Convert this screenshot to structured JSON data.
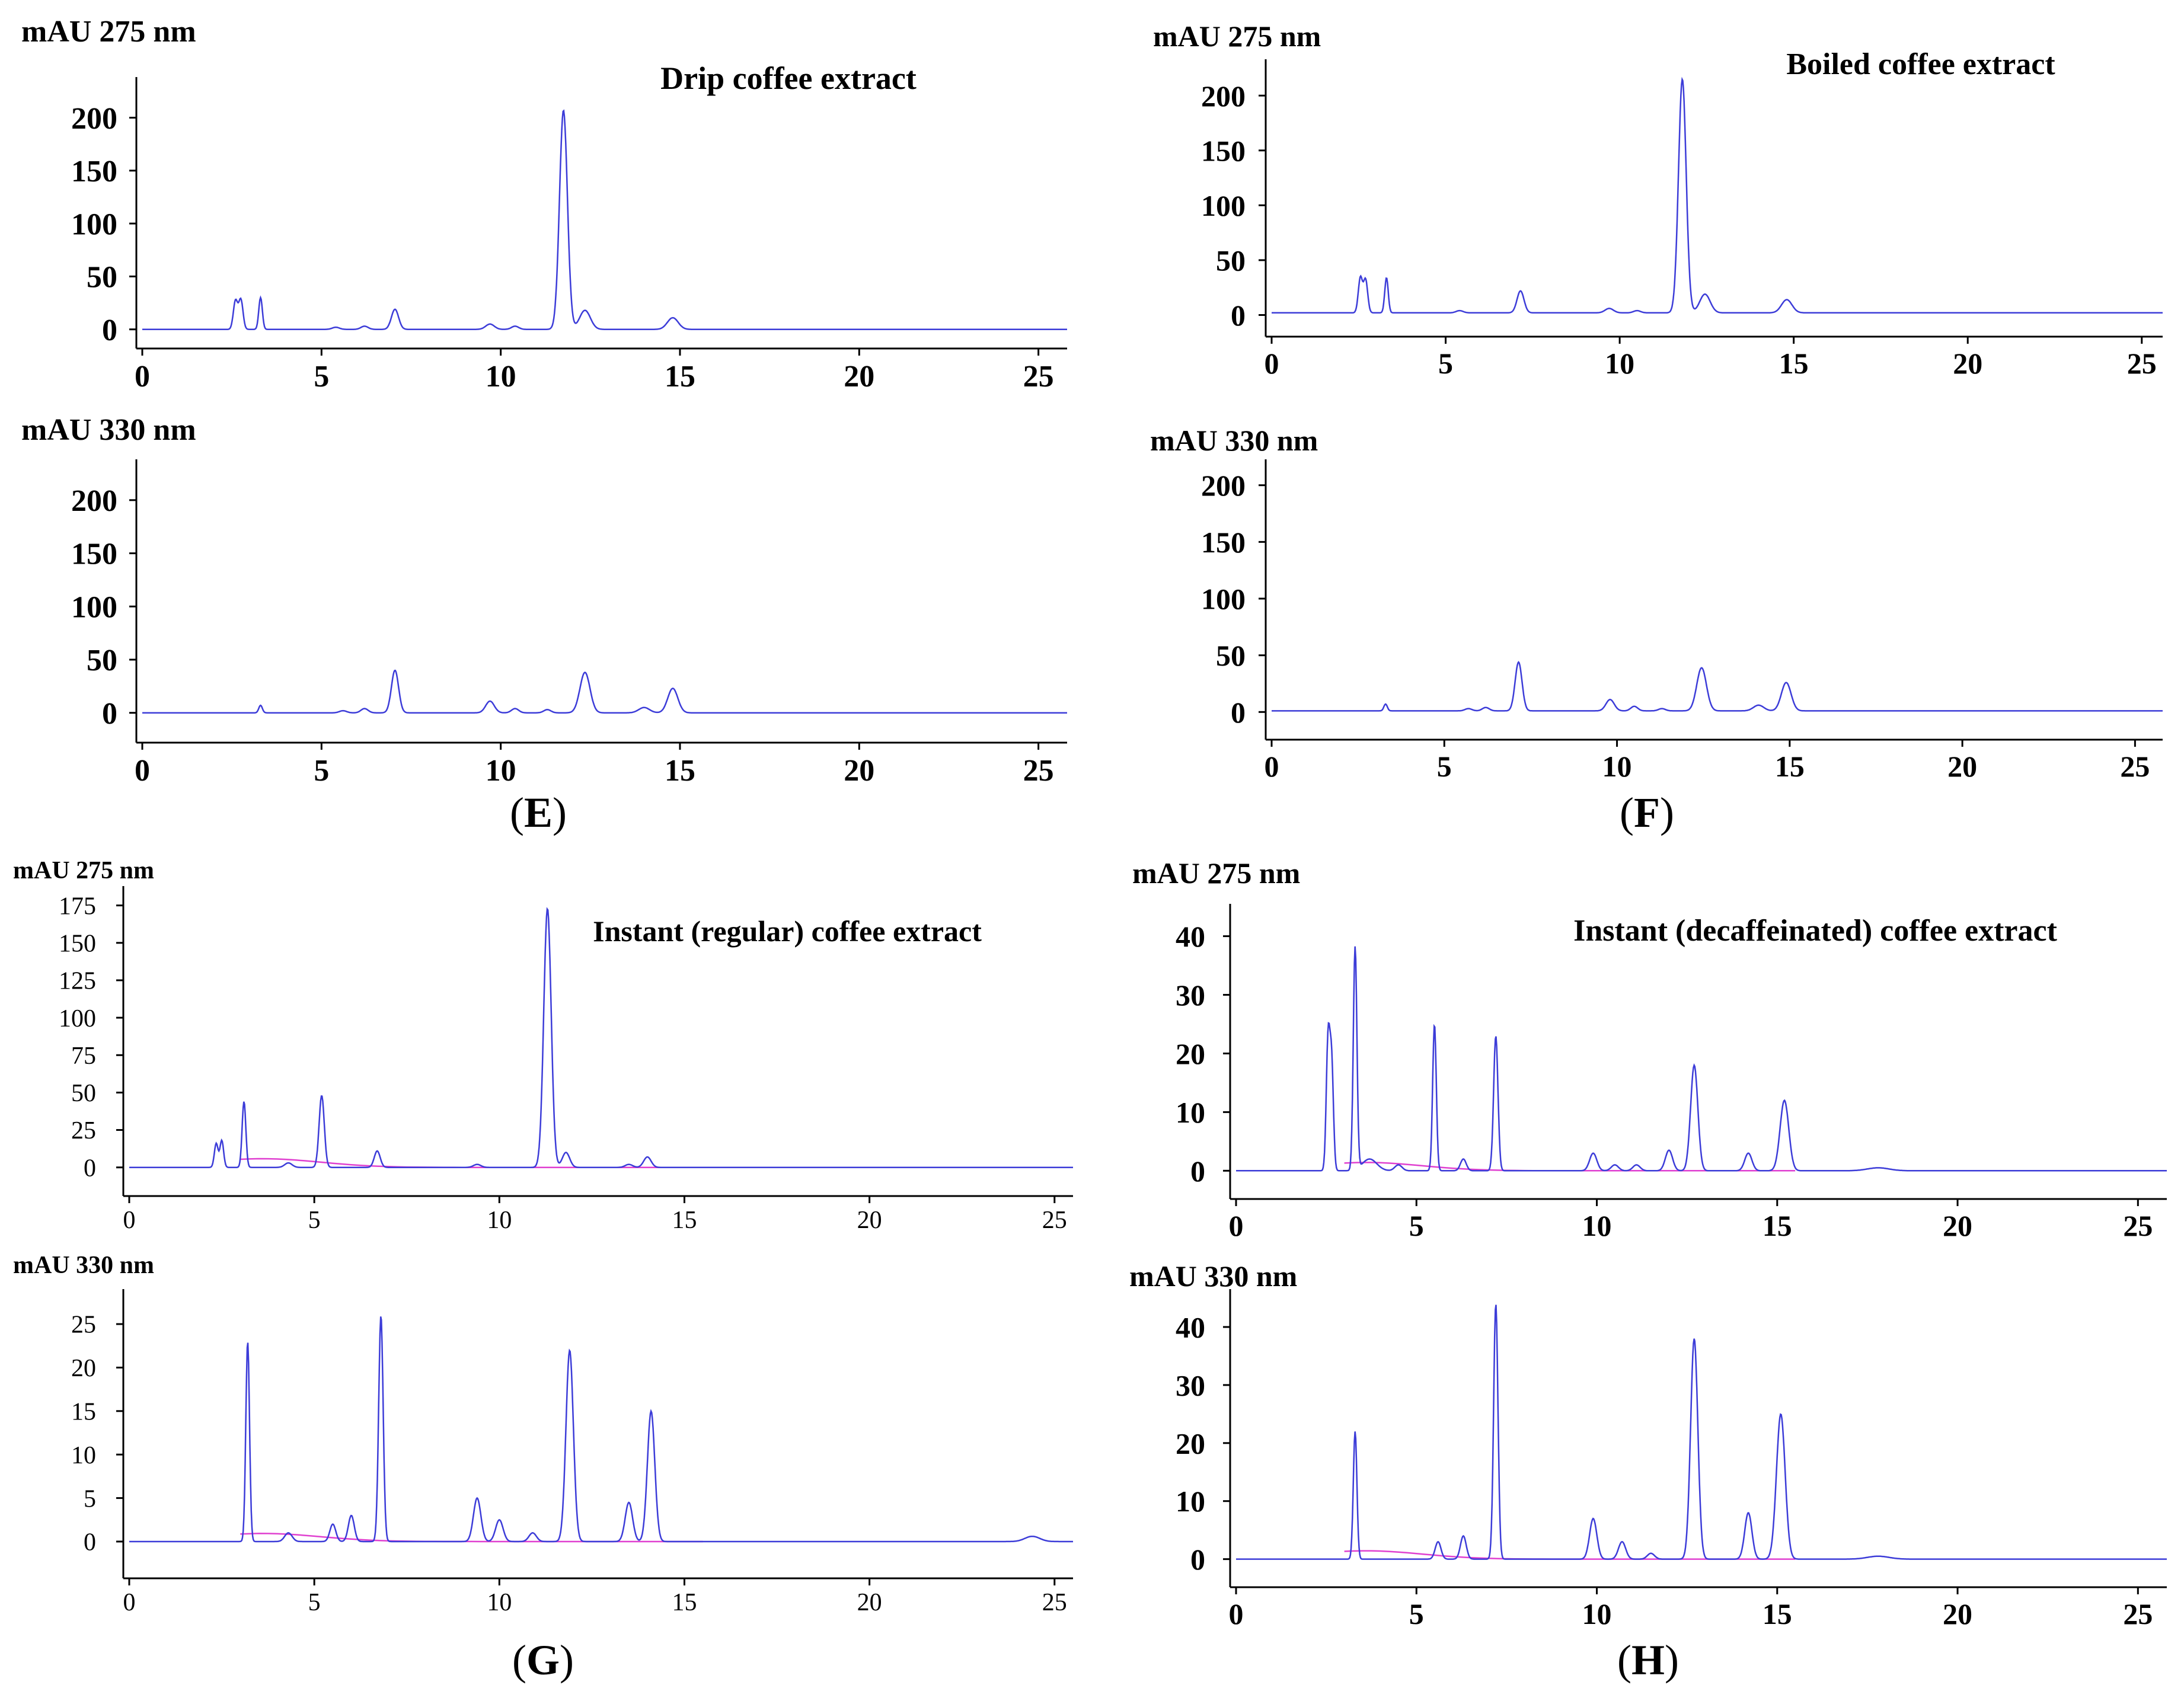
{
  "figure": {
    "panel_labels": [
      {
        "key": "E",
        "open": "(",
        "letter": "E",
        "close": ")"
      },
      {
        "key": "F",
        "open": "(",
        "letter": "F",
        "close": ")"
      },
      {
        "key": "G",
        "open": "(",
        "letter": "G",
        "close": ")"
      },
      {
        "key": "H",
        "open": "(",
        "letter": "H",
        "close": ")"
      }
    ]
  },
  "colors": {
    "trace": "#3c3cd8",
    "baseline": "#e040d0",
    "axis": "#000000",
    "text": "#000000"
  },
  "chart_data": [
    {
      "id": "E-275",
      "panel": "E",
      "type": "line",
      "ylabel": "mAU 275 nm",
      "title": "Drip coffee extract",
      "xlim": [
        0,
        25.8
      ],
      "ylim": [
        -8,
        230
      ],
      "xticks": [
        0,
        5,
        10,
        15,
        20,
        25
      ],
      "yticks": [
        0,
        50,
        100,
        150,
        200
      ],
      "ytick_labels": [
        "0",
        "50",
        "100",
        "150",
        "200"
      ],
      "baseline": 0,
      "has_integration_baseline": false,
      "peaks": [
        [
          2.6,
          27,
          0.06
        ],
        [
          2.75,
          28,
          0.06
        ],
        [
          3.3,
          30,
          0.05
        ],
        [
          5.4,
          2,
          0.1
        ],
        [
          6.2,
          3,
          0.1
        ],
        [
          7.05,
          19,
          0.1
        ],
        [
          9.7,
          5,
          0.12
        ],
        [
          10.4,
          3,
          0.1
        ],
        [
          11.75,
          207,
          0.11
        ],
        [
          12.35,
          18,
          0.15
        ],
        [
          14.8,
          11,
          0.15
        ]
      ]
    },
    {
      "id": "E-330",
      "panel": "E",
      "type": "line",
      "ylabel": "mAU 330 nm",
      "title": "",
      "xlim": [
        0,
        25.8
      ],
      "ylim": [
        -18,
        230
      ],
      "xticks": [
        0,
        5,
        10,
        15,
        20,
        25
      ],
      "yticks": [
        0,
        50,
        100,
        150,
        200
      ],
      "ytick_labels": [
        "0",
        "50",
        "100",
        "150",
        "200"
      ],
      "baseline": 0,
      "has_integration_baseline": false,
      "peaks": [
        [
          3.3,
          7,
          0.05
        ],
        [
          5.6,
          2,
          0.1
        ],
        [
          6.2,
          4,
          0.1
        ],
        [
          7.05,
          40,
          0.1
        ],
        [
          9.7,
          11,
          0.12
        ],
        [
          10.4,
          4,
          0.1
        ],
        [
          11.3,
          3,
          0.1
        ],
        [
          12.35,
          38,
          0.14
        ],
        [
          14.0,
          5,
          0.15
        ],
        [
          14.8,
          23,
          0.14
        ]
      ]
    },
    {
      "id": "F-275",
      "panel": "F",
      "type": "line",
      "ylabel": "mAU 275 nm",
      "title": "Boiled coffee extract",
      "xlim": [
        0,
        25.6
      ],
      "ylim": [
        -10,
        225
      ],
      "xticks": [
        0,
        5,
        10,
        15,
        20,
        25
      ],
      "yticks": [
        0,
        50,
        100,
        150,
        200
      ],
      "ytick_labels": [
        "0",
        "50",
        "100",
        "150",
        "200"
      ],
      "baseline": 2,
      "has_integration_baseline": false,
      "peaks": [
        [
          2.55,
          32,
          0.06
        ],
        [
          2.7,
          30,
          0.06
        ],
        [
          3.3,
          32,
          0.05
        ],
        [
          5.4,
          2,
          0.1
        ],
        [
          7.15,
          20,
          0.1
        ],
        [
          9.7,
          4,
          0.12
        ],
        [
          10.5,
          2,
          0.1
        ],
        [
          11.8,
          213,
          0.11
        ],
        [
          12.45,
          17,
          0.15
        ],
        [
          14.8,
          12,
          0.15
        ]
      ]
    },
    {
      "id": "F-330",
      "panel": "F",
      "type": "line",
      "ylabel": "mAU 330 nm",
      "title": "",
      "xlim": [
        0,
        25.8
      ],
      "ylim": [
        -15,
        215
      ],
      "xticks": [
        0,
        5,
        10,
        15,
        20,
        25
      ],
      "yticks": [
        0,
        50,
        100,
        150,
        200
      ],
      "ytick_labels": [
        "0",
        "50",
        "100",
        "150",
        "200"
      ],
      "baseline": 1,
      "has_integration_baseline": false,
      "peaks": [
        [
          3.3,
          6,
          0.05
        ],
        [
          5.7,
          2,
          0.1
        ],
        [
          6.2,
          3,
          0.1
        ],
        [
          7.15,
          43,
          0.1
        ],
        [
          9.8,
          10,
          0.12
        ],
        [
          10.5,
          4,
          0.1
        ],
        [
          11.3,
          2,
          0.1
        ],
        [
          12.45,
          38,
          0.14
        ],
        [
          14.1,
          5,
          0.15
        ],
        [
          14.9,
          25,
          0.14
        ]
      ]
    },
    {
      "id": "G-275",
      "panel": "G",
      "type": "line",
      "ylabel": "mAU 275 nm",
      "title": "Instant (regular) coffee extract",
      "xlim": [
        0,
        25.5
      ],
      "ylim": [
        -12,
        182
      ],
      "xticks": [
        0,
        5,
        10,
        15,
        20,
        25
      ],
      "yticks": [
        0,
        25,
        50,
        75,
        100,
        125,
        150,
        175
      ],
      "ytick_labels": [
        "0",
        "25",
        "50",
        "75",
        "100",
        "125",
        "150",
        "175"
      ],
      "baseline": 0,
      "has_integration_baseline": true,
      "peaks": [
        [
          2.35,
          16,
          0.05
        ],
        [
          2.5,
          18,
          0.05
        ],
        [
          3.1,
          44,
          0.05
        ],
        [
          4.3,
          3,
          0.1
        ],
        [
          5.2,
          48,
          0.07
        ],
        [
          6.7,
          11,
          0.08
        ],
        [
          9.4,
          2,
          0.1
        ],
        [
          11.3,
          173,
          0.1
        ],
        [
          11.8,
          10,
          0.1
        ],
        [
          13.5,
          2,
          0.1
        ],
        [
          14.0,
          7,
          0.1
        ]
      ]
    },
    {
      "id": "G-330",
      "panel": "G",
      "type": "line",
      "ylabel": "mAU 330 nm",
      "title": "",
      "xlim": [
        0,
        25.5
      ],
      "ylim": [
        -3,
        28
      ],
      "xticks": [
        0,
        5,
        10,
        15,
        20,
        25
      ],
      "yticks": [
        0,
        5,
        10,
        15,
        20,
        25
      ],
      "ytick_labels": [
        "0",
        "5",
        "10",
        "15",
        "20",
        "25"
      ],
      "baseline": 0,
      "has_integration_baseline": true,
      "peaks": [
        [
          3.2,
          23,
          0.05
        ],
        [
          4.3,
          1,
          0.1
        ],
        [
          5.5,
          2,
          0.08
        ],
        [
          6.0,
          3,
          0.08
        ],
        [
          6.8,
          26,
          0.06
        ],
        [
          9.4,
          5,
          0.1
        ],
        [
          10.0,
          2.5,
          0.1
        ],
        [
          10.9,
          1,
          0.1
        ],
        [
          11.9,
          22,
          0.1
        ],
        [
          13.5,
          4.5,
          0.1
        ],
        [
          14.1,
          15,
          0.1
        ],
        [
          24.4,
          0.6,
          0.2
        ]
      ]
    },
    {
      "id": "H-275",
      "panel": "H",
      "type": "line",
      "ylabel": "mAU 275 nm",
      "title": "Instant (decaffeinated) coffee extract",
      "xlim": [
        0,
        25.8
      ],
      "ylim": [
        -3,
        44
      ],
      "xticks": [
        0,
        5,
        10,
        15,
        20,
        25
      ],
      "yticks": [
        0,
        10,
        20,
        30,
        40
      ],
      "ytick_labels": [
        "0",
        "10",
        "20",
        "30",
        "40"
      ],
      "baseline": 0,
      "has_integration_baseline": true,
      "peaks": [
        [
          2.55,
          22,
          0.05
        ],
        [
          2.65,
          18,
          0.05
        ],
        [
          3.3,
          38,
          0.05
        ],
        [
          3.7,
          2,
          0.2
        ],
        [
          4.5,
          1,
          0.1
        ],
        [
          5.5,
          25,
          0.05
        ],
        [
          6.3,
          2,
          0.08
        ],
        [
          7.2,
          23,
          0.06
        ],
        [
          9.9,
          3,
          0.1
        ],
        [
          10.5,
          1,
          0.1
        ],
        [
          11.1,
          1,
          0.1
        ],
        [
          12.0,
          3.5,
          0.1
        ],
        [
          12.7,
          18,
          0.1
        ],
        [
          14.2,
          3,
          0.1
        ],
        [
          15.2,
          12,
          0.12
        ],
        [
          17.8,
          0.5,
          0.3
        ]
      ]
    },
    {
      "id": "H-330",
      "panel": "H",
      "type": "line",
      "ylabel": "mAU 330 nm",
      "title": "",
      "xlim": [
        0,
        25.8
      ],
      "ylim": [
        -3,
        45
      ],
      "xticks": [
        0,
        5,
        10,
        15,
        20,
        25
      ],
      "yticks": [
        0,
        10,
        20,
        30,
        40
      ],
      "ytick_labels": [
        "0",
        "10",
        "20",
        "30",
        "40"
      ],
      "baseline": 0,
      "has_integration_baseline": true,
      "peaks": [
        [
          3.3,
          22,
          0.05
        ],
        [
          5.6,
          3,
          0.08
        ],
        [
          6.3,
          4,
          0.08
        ],
        [
          7.2,
          44,
          0.06
        ],
        [
          9.9,
          7,
          0.1
        ],
        [
          10.7,
          3,
          0.1
        ],
        [
          11.5,
          1,
          0.1
        ],
        [
          12.7,
          38,
          0.1
        ],
        [
          14.2,
          8,
          0.1
        ],
        [
          15.1,
          25,
          0.12
        ],
        [
          17.8,
          0.5,
          0.3
        ]
      ]
    }
  ]
}
